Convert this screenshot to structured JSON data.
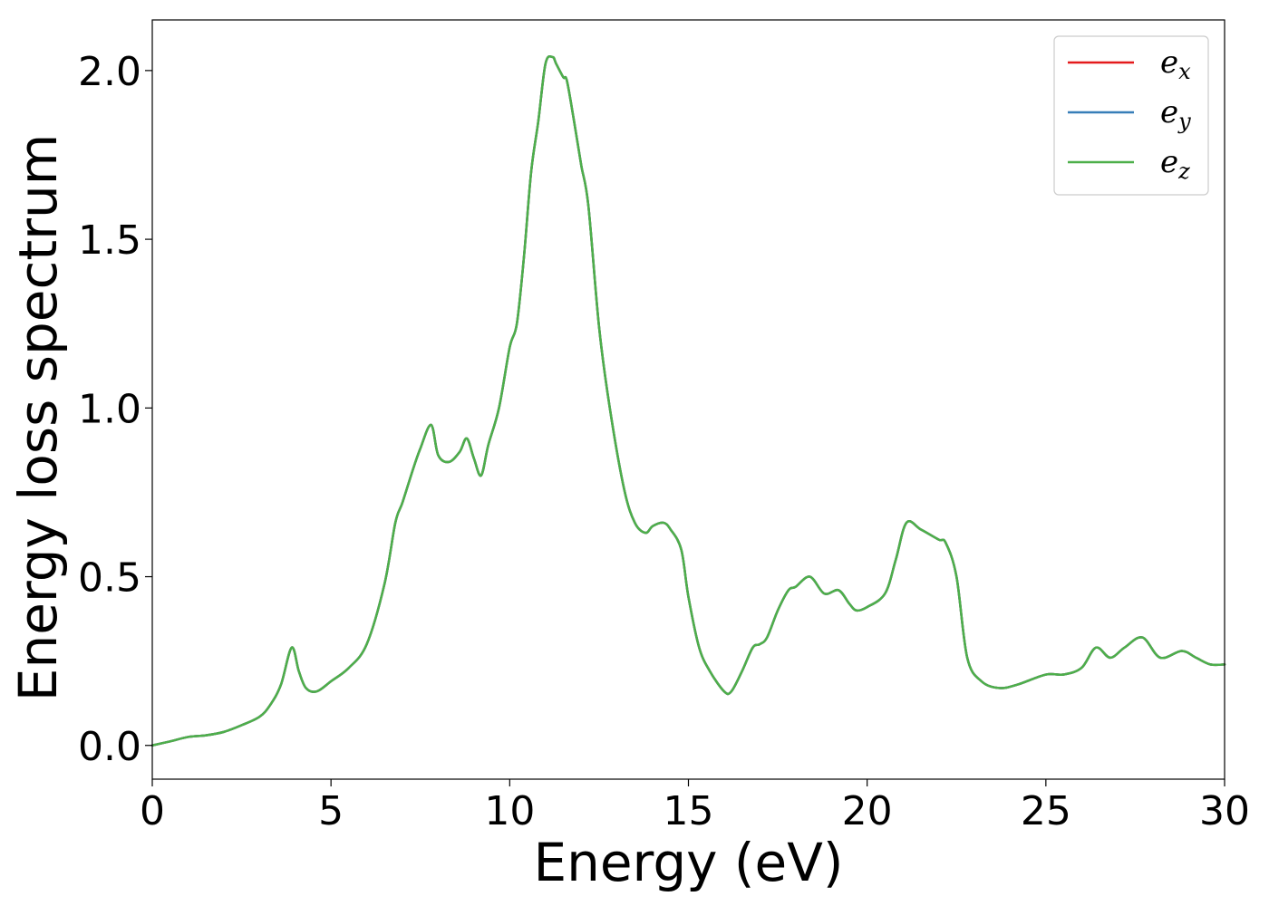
{
  "chart_data": {
    "type": "line",
    "title": "",
    "xlabel": "Energy (eV)",
    "ylabel": "Energy loss spectrum",
    "xlim": [
      0,
      30
    ],
    "ylim": [
      -0.1,
      2.15
    ],
    "xticks": [
      0,
      5,
      10,
      15,
      20,
      25,
      30
    ],
    "xtick_labels": [
      "0",
      "5",
      "10",
      "15",
      "20",
      "25",
      "30"
    ],
    "yticks": [
      0.0,
      0.5,
      1.0,
      1.5,
      2.0
    ],
    "ytick_labels": [
      "0.0",
      "0.5",
      "1.0",
      "1.5",
      "2.0"
    ],
    "grid": false,
    "legend_position": "top-right",
    "x": [
      0,
      0.5,
      1,
      1.5,
      2,
      2.5,
      3,
      3.3,
      3.6,
      3.9,
      4.1,
      4.3,
      4.6,
      5,
      5.5,
      6,
      6.5,
      6.8,
      7,
      7.3,
      7.5,
      7.8,
      8,
      8.3,
      8.6,
      8.8,
      9,
      9.2,
      9.4,
      9.7,
      10,
      10.2,
      10.4,
      10.6,
      10.8,
      11,
      11.2,
      11.3,
      11.5,
      11.6,
      11.8,
      12,
      12.2,
      12.5,
      12.8,
      13.2,
      13.5,
      13.8,
      14,
      14.3,
      14.5,
      14.8,
      15,
      15.3,
      15.6,
      16,
      16.2,
      16.5,
      16.8,
      17,
      17.2,
      17.5,
      17.8,
      18,
      18.4,
      18.8,
      19.2,
      19.5,
      19.7,
      20,
      20.5,
      20.8,
      21.1,
      21.5,
      22,
      22.2,
      22.5,
      22.8,
      23.2,
      23.7,
      24.2,
      25,
      25.5,
      26,
      26.4,
      26.8,
      27.2,
      27.7,
      28.2,
      28.8,
      29.2,
      29.6,
      30
    ],
    "series": [
      {
        "name": "e",
        "subscript": "x",
        "color": "#e41a1c",
        "values": [
          0.0,
          0.012,
          0.025,
          0.03,
          0.04,
          0.06,
          0.085,
          0.12,
          0.18,
          0.29,
          0.22,
          0.17,
          0.16,
          0.19,
          0.23,
          0.3,
          0.48,
          0.66,
          0.72,
          0.82,
          0.88,
          0.95,
          0.86,
          0.84,
          0.87,
          0.91,
          0.85,
          0.8,
          0.89,
          1.0,
          1.18,
          1.25,
          1.45,
          1.7,
          1.85,
          2.02,
          2.04,
          2.02,
          1.98,
          1.97,
          1.85,
          1.72,
          1.6,
          1.24,
          1.0,
          0.76,
          0.66,
          0.63,
          0.65,
          0.66,
          0.64,
          0.58,
          0.44,
          0.29,
          0.22,
          0.16,
          0.16,
          0.22,
          0.29,
          0.3,
          0.32,
          0.4,
          0.46,
          0.47,
          0.5,
          0.45,
          0.46,
          0.42,
          0.4,
          0.41,
          0.45,
          0.55,
          0.66,
          0.64,
          0.61,
          0.6,
          0.5,
          0.26,
          0.19,
          0.17,
          0.18,
          0.21,
          0.21,
          0.23,
          0.29,
          0.26,
          0.29,
          0.32,
          0.26,
          0.28,
          0.26,
          0.24,
          0.24
        ]
      },
      {
        "name": "e",
        "subscript": "y",
        "color": "#377eb8",
        "values": [
          0.0,
          0.012,
          0.025,
          0.03,
          0.04,
          0.06,
          0.085,
          0.12,
          0.18,
          0.29,
          0.22,
          0.17,
          0.16,
          0.19,
          0.23,
          0.3,
          0.48,
          0.66,
          0.72,
          0.82,
          0.88,
          0.95,
          0.86,
          0.84,
          0.87,
          0.91,
          0.85,
          0.8,
          0.89,
          1.0,
          1.18,
          1.25,
          1.45,
          1.7,
          1.85,
          2.02,
          2.04,
          2.02,
          1.98,
          1.97,
          1.85,
          1.72,
          1.6,
          1.24,
          1.0,
          0.76,
          0.66,
          0.63,
          0.65,
          0.66,
          0.64,
          0.58,
          0.44,
          0.29,
          0.22,
          0.16,
          0.16,
          0.22,
          0.29,
          0.3,
          0.32,
          0.4,
          0.46,
          0.47,
          0.5,
          0.45,
          0.46,
          0.42,
          0.4,
          0.41,
          0.45,
          0.55,
          0.66,
          0.64,
          0.61,
          0.6,
          0.5,
          0.26,
          0.19,
          0.17,
          0.18,
          0.21,
          0.21,
          0.23,
          0.29,
          0.26,
          0.29,
          0.32,
          0.26,
          0.28,
          0.26,
          0.24,
          0.24
        ]
      },
      {
        "name": "e",
        "subscript": "z",
        "color": "#4daf4a",
        "values": [
          0.0,
          0.012,
          0.025,
          0.03,
          0.04,
          0.06,
          0.085,
          0.12,
          0.18,
          0.29,
          0.22,
          0.17,
          0.16,
          0.19,
          0.23,
          0.3,
          0.48,
          0.66,
          0.72,
          0.82,
          0.88,
          0.95,
          0.86,
          0.84,
          0.87,
          0.91,
          0.85,
          0.8,
          0.89,
          1.0,
          1.18,
          1.25,
          1.45,
          1.7,
          1.85,
          2.02,
          2.04,
          2.02,
          1.98,
          1.97,
          1.85,
          1.72,
          1.6,
          1.24,
          1.0,
          0.76,
          0.66,
          0.63,
          0.65,
          0.66,
          0.64,
          0.58,
          0.44,
          0.29,
          0.22,
          0.16,
          0.16,
          0.22,
          0.29,
          0.3,
          0.32,
          0.4,
          0.46,
          0.47,
          0.5,
          0.45,
          0.46,
          0.42,
          0.4,
          0.41,
          0.45,
          0.55,
          0.66,
          0.64,
          0.61,
          0.6,
          0.5,
          0.26,
          0.19,
          0.17,
          0.18,
          0.21,
          0.21,
          0.23,
          0.29,
          0.26,
          0.29,
          0.32,
          0.26,
          0.28,
          0.26,
          0.24,
          0.24
        ]
      }
    ]
  }
}
